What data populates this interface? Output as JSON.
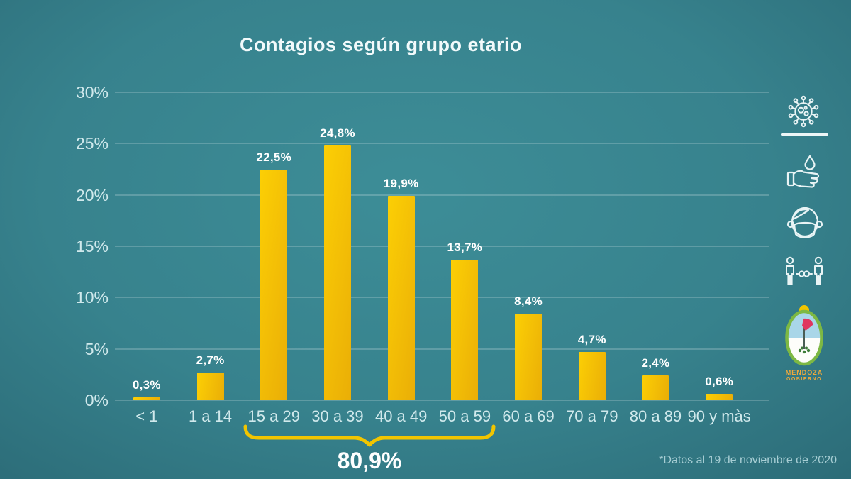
{
  "title": "Contagios según grupo etario",
  "footnote": "*Datos al 19 de noviembre de 2020",
  "chart_data": {
    "type": "bar",
    "title": "Contagios según grupo etario",
    "categories": [
      "< 1",
      "1 a 14",
      "15 a 29",
      "30 a 39",
      "40 a 49",
      "50 a 59",
      "60 a 69",
      "70 a 79",
      "80 a 89",
      "90 y màs"
    ],
    "values": [
      0.3,
      2.7,
      22.5,
      24.8,
      19.9,
      13.7,
      8.4,
      4.7,
      2.4,
      0.6
    ],
    "value_labels": [
      "0,3%",
      "2,7%",
      "22,5%",
      "24,8%",
      "19,9%",
      "13,7%",
      "8,4%",
      "4,7%",
      "2,4%",
      "0,6%"
    ],
    "y_tick_values": [
      0,
      5,
      10,
      15,
      20,
      25,
      30
    ],
    "y_tick_labels": [
      "0%",
      "5%",
      "10%",
      "15%",
      "20%",
      "25%",
      "30%"
    ],
    "ylim": [
      0,
      30
    ],
    "grid": true,
    "legend": "none",
    "annotation": {
      "label": "80,9%",
      "from_category": "15 a 29",
      "to_category": "50 a 59"
    }
  },
  "sidebar_icons": [
    "virus-icon",
    "hand-washing-icon",
    "face-mask-icon",
    "social-distancing-icon"
  ],
  "logo": {
    "name": "MENDOZA",
    "sub": "GOBIERNO"
  },
  "colors": {
    "background_center": "#3d8d97",
    "background_edge": "#2b6a76",
    "bar_light": "#fccf05",
    "bar_dark": "#eaae06",
    "brace": "#f2c500",
    "title_text": "#f2fafb",
    "axis_text": "#d0e9ec",
    "value_text": "#ffffff",
    "footnote_text": "#a7ced4",
    "icon_stroke": "#e9f4f5",
    "logo_text": "#eda93c"
  }
}
